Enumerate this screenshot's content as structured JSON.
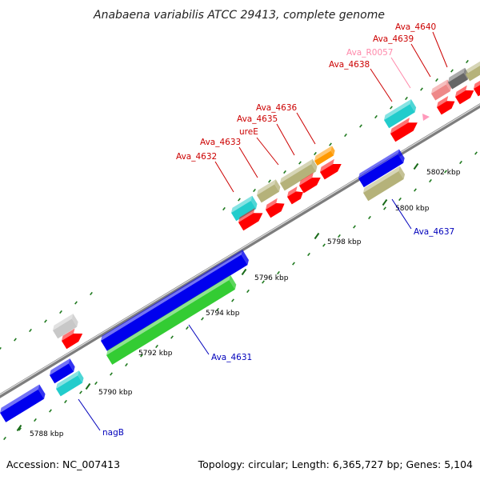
{
  "title": "Anabaena variabilis ATCC 29413, complete genome",
  "footer": {
    "accession": "Accession: NC_007413",
    "topology": "Topology: circular; Length: 6,365,727 bp; Genes: 5,104"
  },
  "colors": {
    "backbone": "#7d7d7d",
    "tick_major": "#1a6b1a",
    "tick_minor": "#1f7a1f",
    "label_red": "#cc0000",
    "label_blue": "#0000bb",
    "label_pink": "#ff88aa",
    "cds": "#ff0000",
    "blue": "#0000ee",
    "green": "#33cc33",
    "khaki": "#b5b27a",
    "cyan": "#22cccc",
    "orange": "#ff9900",
    "gray": "#c8c8c8",
    "darkgray": "#666666",
    "pink": "#ee8888"
  },
  "ticks": [
    "5788 kbp",
    "5790 kbp",
    "5792 kbp",
    "5794 kbp",
    "5796 kbp",
    "5798 kbp",
    "5800 kbp",
    "5802 kbp"
  ],
  "labels": [
    {
      "text": "Ava_4640",
      "color": "red"
    },
    {
      "text": "Ava_4639",
      "color": "red"
    },
    {
      "text": "Ava_R0057",
      "color": "pink"
    },
    {
      "text": "Ava_4638",
      "color": "red"
    },
    {
      "text": "Ava_4636",
      "color": "red"
    },
    {
      "text": "Ava_4635",
      "color": "red"
    },
    {
      "text": "ureE",
      "color": "red"
    },
    {
      "text": "Ava_4633",
      "color": "red"
    },
    {
      "text": "Ava_4632",
      "color": "red"
    },
    {
      "text": "Ava_4637",
      "color": "blue"
    },
    {
      "text": "Ava_4631",
      "color": "blue"
    },
    {
      "text": "nagB",
      "color": "blue"
    }
  ]
}
